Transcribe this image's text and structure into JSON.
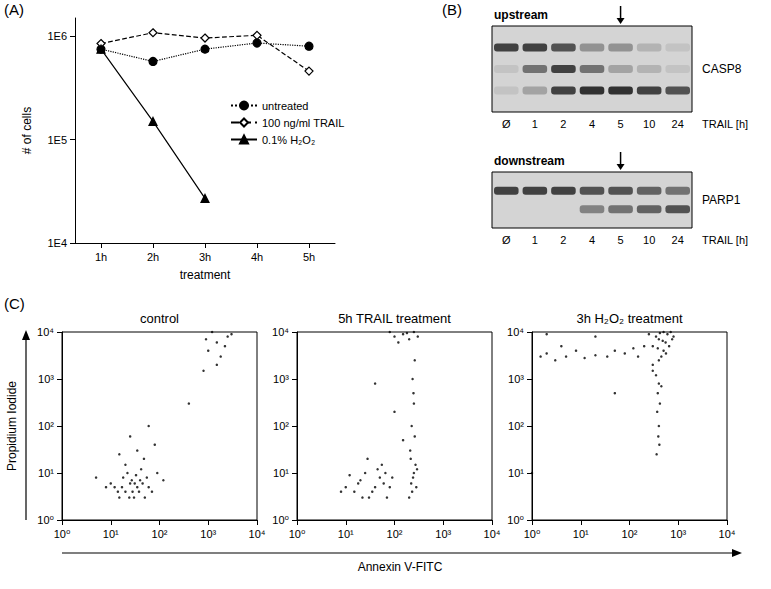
{
  "chart_data": [
    {
      "panel": "(A)",
      "type": "line",
      "x_label": "treatment",
      "y_label": "# of cells",
      "categories": [
        "1h",
        "2h",
        "3h",
        "4h",
        "5h"
      ],
      "log": "y",
      "ylim": [
        10000,
        1500000
      ],
      "yticks": [
        {
          "value": 10000,
          "label": "1E4"
        },
        {
          "value": 100000,
          "label": "1E5"
        },
        {
          "value": 1000000,
          "label": "1E6"
        }
      ],
      "legend": "right",
      "series": [
        {
          "name": "untreated",
          "color": "#000000",
          "marker": "circle",
          "line_style": "dotted",
          "values": [
            750000,
            570000,
            750000,
            860000,
            800000
          ]
        },
        {
          "name": "100 ng/ml TRAIL",
          "color": "#000000",
          "marker": "diamond-open",
          "line_style": "dashed",
          "values": [
            850000,
            1080000,
            960000,
            1020000,
            460000
          ]
        },
        {
          "name": "0.1% H₂O₂",
          "color": "#000000",
          "marker": "triangle",
          "line_style": "solid",
          "values": [
            750000,
            150000,
            27000,
            null,
            null
          ]
        }
      ]
    },
    {
      "panel": "(B)",
      "type": "blot",
      "x_label": "TRAIL [h]",
      "lanes": [
        "Ø",
        "1",
        "2",
        "4",
        "5",
        "10",
        "24"
      ],
      "marked_lane": "5",
      "blots": [
        {
          "heading": "upstream",
          "label": "CASP8",
          "bands": [
            {
              "intensity": [
                0.9,
                0.9,
                0.8,
                0.4,
                0.4,
                0.2,
                0.1
              ]
            },
            {
              "intensity": [
                0.1,
                0.6,
                0.9,
                0.6,
                0.3,
                0.2,
                0.1
              ]
            },
            {
              "intensity": [
                0.1,
                0.3,
                0.9,
                1,
                1,
                0.9,
                0.8
              ]
            }
          ]
        },
        {
          "heading": "downstream",
          "label": "PARP1",
          "bands": [
            {
              "intensity": [
                0.9,
                0.9,
                0.9,
                0.8,
                0.8,
                0.7,
                0.6
              ]
            },
            {
              "intensity": [
                0,
                0,
                0,
                0.5,
                0.6,
                0.7,
                0.8
              ]
            }
          ]
        }
      ]
    },
    {
      "panel": "(C)",
      "type": "scatter",
      "x_label": "Annexin V-FITC",
      "y_label": "Propidium Iodide",
      "log": true,
      "xlim": [
        1,
        10000
      ],
      "ylim": [
        1,
        10000
      ],
      "color": "#000000",
      "xticks": [
        {
          "value": 1,
          "label": "10⁰"
        },
        {
          "value": 10,
          "label": "10¹"
        },
        {
          "value": 100,
          "label": "10²"
        },
        {
          "value": 1000,
          "label": "10³"
        },
        {
          "value": 10000,
          "label": "10⁴"
        }
      ],
      "yticks": [
        {
          "value": 1,
          "label": "10⁰"
        },
        {
          "value": 10,
          "label": "10¹"
        },
        {
          "value": 100,
          "label": "10²"
        },
        {
          "value": 1000,
          "label": "10³"
        },
        {
          "value": 10000,
          "label": "10⁴"
        }
      ],
      "plots": [
        {
          "title": "control",
          "x": [
            12,
            20,
            25,
            30,
            18,
            35,
            40,
            15,
            22,
            28,
            45,
            50,
            10,
            33,
            60,
            27,
            38,
            17,
            24,
            42,
            55,
            14,
            31,
            70,
            8,
            20,
            48,
            35,
            80,
            25,
            60,
            15,
            90,
            120,
            5,
            1000,
            1500,
            2500,
            1800,
            3000,
            900,
            2200,
            1200,
            400,
            800,
            1500
          ],
          "y": [
            5,
            4,
            6,
            3,
            8,
            5,
            7,
            3,
            10,
            4,
            6,
            3,
            6,
            9,
            5,
            7,
            4,
            5,
            3,
            12,
            8,
            4,
            6,
            4,
            5,
            15,
            20,
            30,
            40,
            60,
            100,
            25,
            10,
            7,
            8,
            4000,
            6000,
            8000,
            3000,
            9000,
            7000,
            5000,
            10000,
            300,
            1500,
            2000
          ]
        },
        {
          "title": "5h TRAIL treatment",
          "x": [
            10,
            15,
            20,
            30,
            25,
            40,
            50,
            35,
            60,
            70,
            45,
            18,
            12,
            80,
            22,
            55,
            28,
            90,
            8,
            65,
            200,
            220,
            250,
            230,
            270,
            210,
            260,
            240,
            280,
            225,
            250,
            235,
            260,
            215,
            290,
            245,
            100,
            150,
            200,
            250,
            120,
            180,
            80,
            300,
            150,
            100,
            40
          ],
          "y": [
            5,
            4,
            7,
            3,
            10,
            5,
            8,
            4,
            6,
            3,
            12,
            6,
            9,
            5,
            3,
            15,
            20,
            8,
            4,
            10,
            3,
            6,
            10,
            4,
            15,
            30,
            60,
            8,
            5,
            100,
            300,
            1000,
            2500,
            20,
            12,
            500,
            8000,
            9000,
            7000,
            10000,
            6000,
            9500,
            10000,
            8000,
            50,
            200,
            800
          ]
        },
        {
          "title": "3h H₂O₂ treatment",
          "x": [
            300,
            400,
            500,
            600,
            450,
            350,
            550,
            700,
            400,
            500,
            650,
            380,
            420,
            480,
            800,
            300,
            560,
            250,
            200,
            750,
            1.5,
            2,
            3,
            5,
            8,
            12,
            20,
            35,
            50,
            80,
            120,
            150,
            2,
            4,
            350,
            400,
            380,
            420,
            370,
            400,
            390,
            410,
            360,
            450,
            300,
            1,
            50,
            20
          ],
          "y": [
            5000,
            7000,
            4000,
            9000,
            3000,
            8000,
            6000,
            10000,
            2500,
            10000,
            5000,
            4500,
            9500,
            6500,
            8000,
            2000,
            3500,
            9000,
            5000,
            7000,
            3000,
            3500,
            2500,
            3000,
            4000,
            2800,
            3200,
            3000,
            4000,
            3500,
            4500,
            3000,
            9000,
            5000,
            1200,
            800,
            500,
            300,
            200,
            100,
            60,
            40,
            25,
            700,
            1500,
            10,
            500,
            8000
          ]
        }
      ]
    }
  ]
}
